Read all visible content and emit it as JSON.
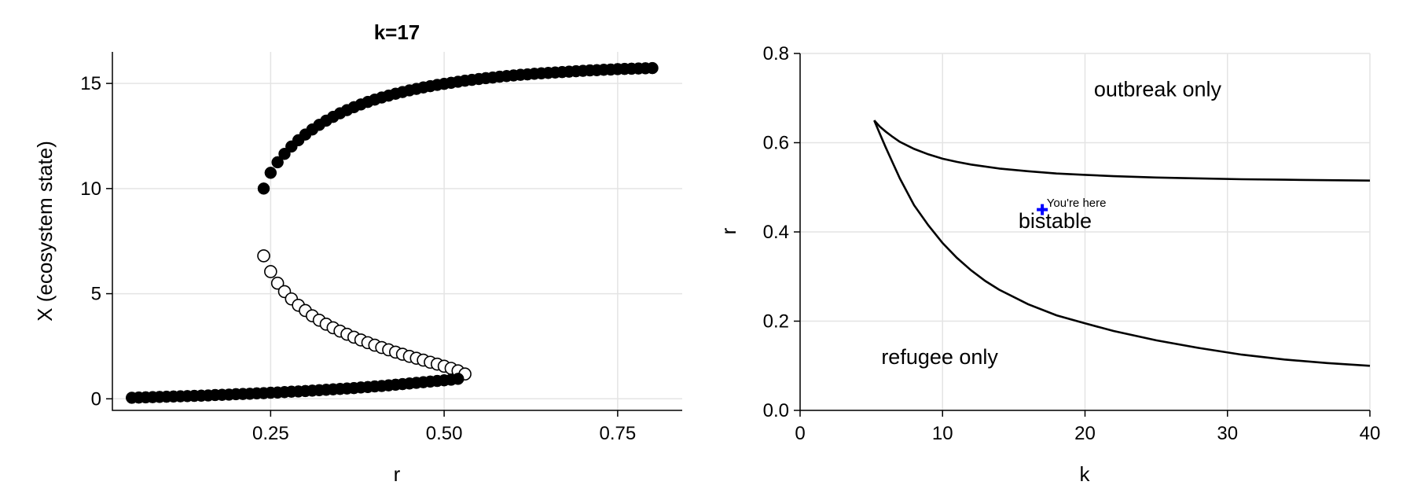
{
  "chart_data": [
    {
      "type": "scatter",
      "title": "k=17",
      "xlabel": "r",
      "ylabel": "X (ecosystem state)",
      "xlim": [
        0.022,
        0.843
      ],
      "ylim": [
        -0.55,
        16.5
      ],
      "xticks": [
        0.25,
        0.5,
        0.75
      ],
      "xtick_labels": [
        "0.25",
        "0.50",
        "0.75"
      ],
      "yticks": [
        0,
        5,
        10,
        15
      ],
      "ytick_labels": [
        "0",
        "5",
        "10",
        "15"
      ],
      "grid": true,
      "series": [
        {
          "role": "upper stable branch",
          "marker": "filled-circle",
          "color": "#000000",
          "x": [
            0.24,
            0.25,
            0.26,
            0.27,
            0.28,
            0.29,
            0.3,
            0.31,
            0.32,
            0.33,
            0.34,
            0.35,
            0.36,
            0.37,
            0.38,
            0.39,
            0.4,
            0.41,
            0.42,
            0.43,
            0.44,
            0.45,
            0.46,
            0.47,
            0.48,
            0.49,
            0.5,
            0.51,
            0.52,
            0.53,
            0.54,
            0.55,
            0.56,
            0.57,
            0.58,
            0.59,
            0.6,
            0.61,
            0.62,
            0.63,
            0.64,
            0.65,
            0.66,
            0.67,
            0.68,
            0.69,
            0.7,
            0.71,
            0.72,
            0.73,
            0.74,
            0.75,
            0.76,
            0.77,
            0.78,
            0.79,
            0.8
          ],
          "y": [
            10.0,
            10.75,
            11.25,
            11.65,
            12.0,
            12.3,
            12.57,
            12.81,
            13.03,
            13.23,
            13.41,
            13.58,
            13.73,
            13.87,
            14.0,
            14.12,
            14.23,
            14.33,
            14.42,
            14.51,
            14.59,
            14.67,
            14.74,
            14.81,
            14.87,
            14.93,
            14.98,
            15.03,
            15.08,
            15.13,
            15.17,
            15.21,
            15.25,
            15.28,
            15.32,
            15.35,
            15.38,
            15.41,
            15.43,
            15.46,
            15.48,
            15.5,
            15.52,
            15.54,
            15.56,
            15.58,
            15.6,
            15.62,
            15.63,
            15.65,
            15.66,
            15.68,
            15.69,
            15.7,
            15.71,
            15.72,
            15.73
          ]
        },
        {
          "role": "unstable branch",
          "marker": "open-circle",
          "color": "#ffffff",
          "x": [
            0.24,
            0.25,
            0.26,
            0.27,
            0.28,
            0.29,
            0.3,
            0.31,
            0.32,
            0.33,
            0.34,
            0.35,
            0.36,
            0.37,
            0.38,
            0.39,
            0.4,
            0.41,
            0.42,
            0.43,
            0.44,
            0.45,
            0.46,
            0.47,
            0.48,
            0.49,
            0.5,
            0.51,
            0.52,
            0.53
          ],
          "y": [
            6.8,
            6.05,
            5.5,
            5.1,
            4.75,
            4.45,
            4.2,
            3.95,
            3.74,
            3.55,
            3.38,
            3.22,
            3.07,
            2.93,
            2.8,
            2.67,
            2.55,
            2.44,
            2.33,
            2.22,
            2.12,
            2.02,
            1.93,
            1.84,
            1.74,
            1.65,
            1.55,
            1.45,
            1.33,
            1.18
          ]
        },
        {
          "role": "lower stable branch",
          "marker": "filled-circle",
          "color": "#000000",
          "x": [
            0.05,
            0.06,
            0.07,
            0.08,
            0.09,
            0.1,
            0.11,
            0.12,
            0.13,
            0.14,
            0.15,
            0.16,
            0.17,
            0.18,
            0.19,
            0.2,
            0.21,
            0.22,
            0.23,
            0.24,
            0.25,
            0.26,
            0.27,
            0.28,
            0.29,
            0.3,
            0.31,
            0.32,
            0.33,
            0.34,
            0.35,
            0.36,
            0.37,
            0.38,
            0.39,
            0.4,
            0.41,
            0.42,
            0.43,
            0.44,
            0.45,
            0.46,
            0.47,
            0.48,
            0.49,
            0.5,
            0.51,
            0.52
          ],
          "y": [
            0.05,
            0.06,
            0.07,
            0.08,
            0.09,
            0.1,
            0.11,
            0.12,
            0.13,
            0.14,
            0.15,
            0.16,
            0.18,
            0.19,
            0.2,
            0.22,
            0.23,
            0.24,
            0.26,
            0.27,
            0.29,
            0.3,
            0.32,
            0.34,
            0.35,
            0.37,
            0.39,
            0.41,
            0.43,
            0.45,
            0.47,
            0.49,
            0.51,
            0.54,
            0.56,
            0.59,
            0.61,
            0.64,
            0.67,
            0.7,
            0.73,
            0.76,
            0.79,
            0.82,
            0.85,
            0.88,
            0.91,
            0.95
          ]
        }
      ]
    },
    {
      "type": "line",
      "title": "",
      "xlabel": "k",
      "ylabel": "r",
      "xlim": [
        0,
        40
      ],
      "ylim": [
        0,
        0.8
      ],
      "xticks": [
        0,
        10,
        20,
        30,
        40
      ],
      "xtick_labels": [
        "0",
        "10",
        "20",
        "30",
        "40"
      ],
      "yticks": [
        0,
        0.2,
        0.4,
        0.6,
        0.8
      ],
      "ytick_labels": [
        "0.0",
        "0.2",
        "0.4",
        "0.6",
        "0.8"
      ],
      "grid": true,
      "series": [
        {
          "role": "upper boundary",
          "color": "#000000",
          "x": [
            5.2,
            5.6,
            6.0,
            6.5,
            7.0,
            8.0,
            9.0,
            10.0,
            11.0,
            12.0,
            14.0,
            16.0,
            18.0,
            20.0,
            22.0,
            25.0,
            28.0,
            31.0,
            34.0,
            37.0,
            40.0
          ],
          "y": [
            0.65,
            0.636,
            0.625,
            0.613,
            0.602,
            0.586,
            0.574,
            0.564,
            0.557,
            0.551,
            0.542,
            0.536,
            0.531,
            0.528,
            0.525,
            0.522,
            0.52,
            0.518,
            0.517,
            0.516,
            0.515
          ]
        },
        {
          "role": "lower boundary",
          "color": "#000000",
          "x": [
            5.2,
            5.6,
            6.0,
            6.5,
            7.0,
            8.0,
            9.0,
            10.0,
            11.0,
            12.0,
            13.0,
            14.0,
            16.0,
            18.0,
            20.0,
            22.0,
            25.0,
            28.0,
            31.0,
            34.0,
            37.0,
            40.0
          ],
          "y": [
            0.65,
            0.62,
            0.59,
            0.555,
            0.52,
            0.46,
            0.415,
            0.375,
            0.342,
            0.314,
            0.29,
            0.27,
            0.238,
            0.213,
            0.195,
            0.178,
            0.157,
            0.14,
            0.125,
            0.114,
            0.106,
            0.1
          ]
        }
      ],
      "annotations": [
        {
          "text": "outbreak only",
          "x": 25.1,
          "y": 0.72
        },
        {
          "text": "bistable",
          "x": 17.9,
          "y": 0.425
        },
        {
          "text": "refugee only",
          "x": 9.8,
          "y": 0.12
        },
        {
          "text": "You're here",
          "x": 19.4,
          "y": 0.465
        }
      ],
      "marker": {
        "k": 17,
        "r": 0.45,
        "symbol": "plus",
        "color": "#0000ff"
      }
    }
  ]
}
